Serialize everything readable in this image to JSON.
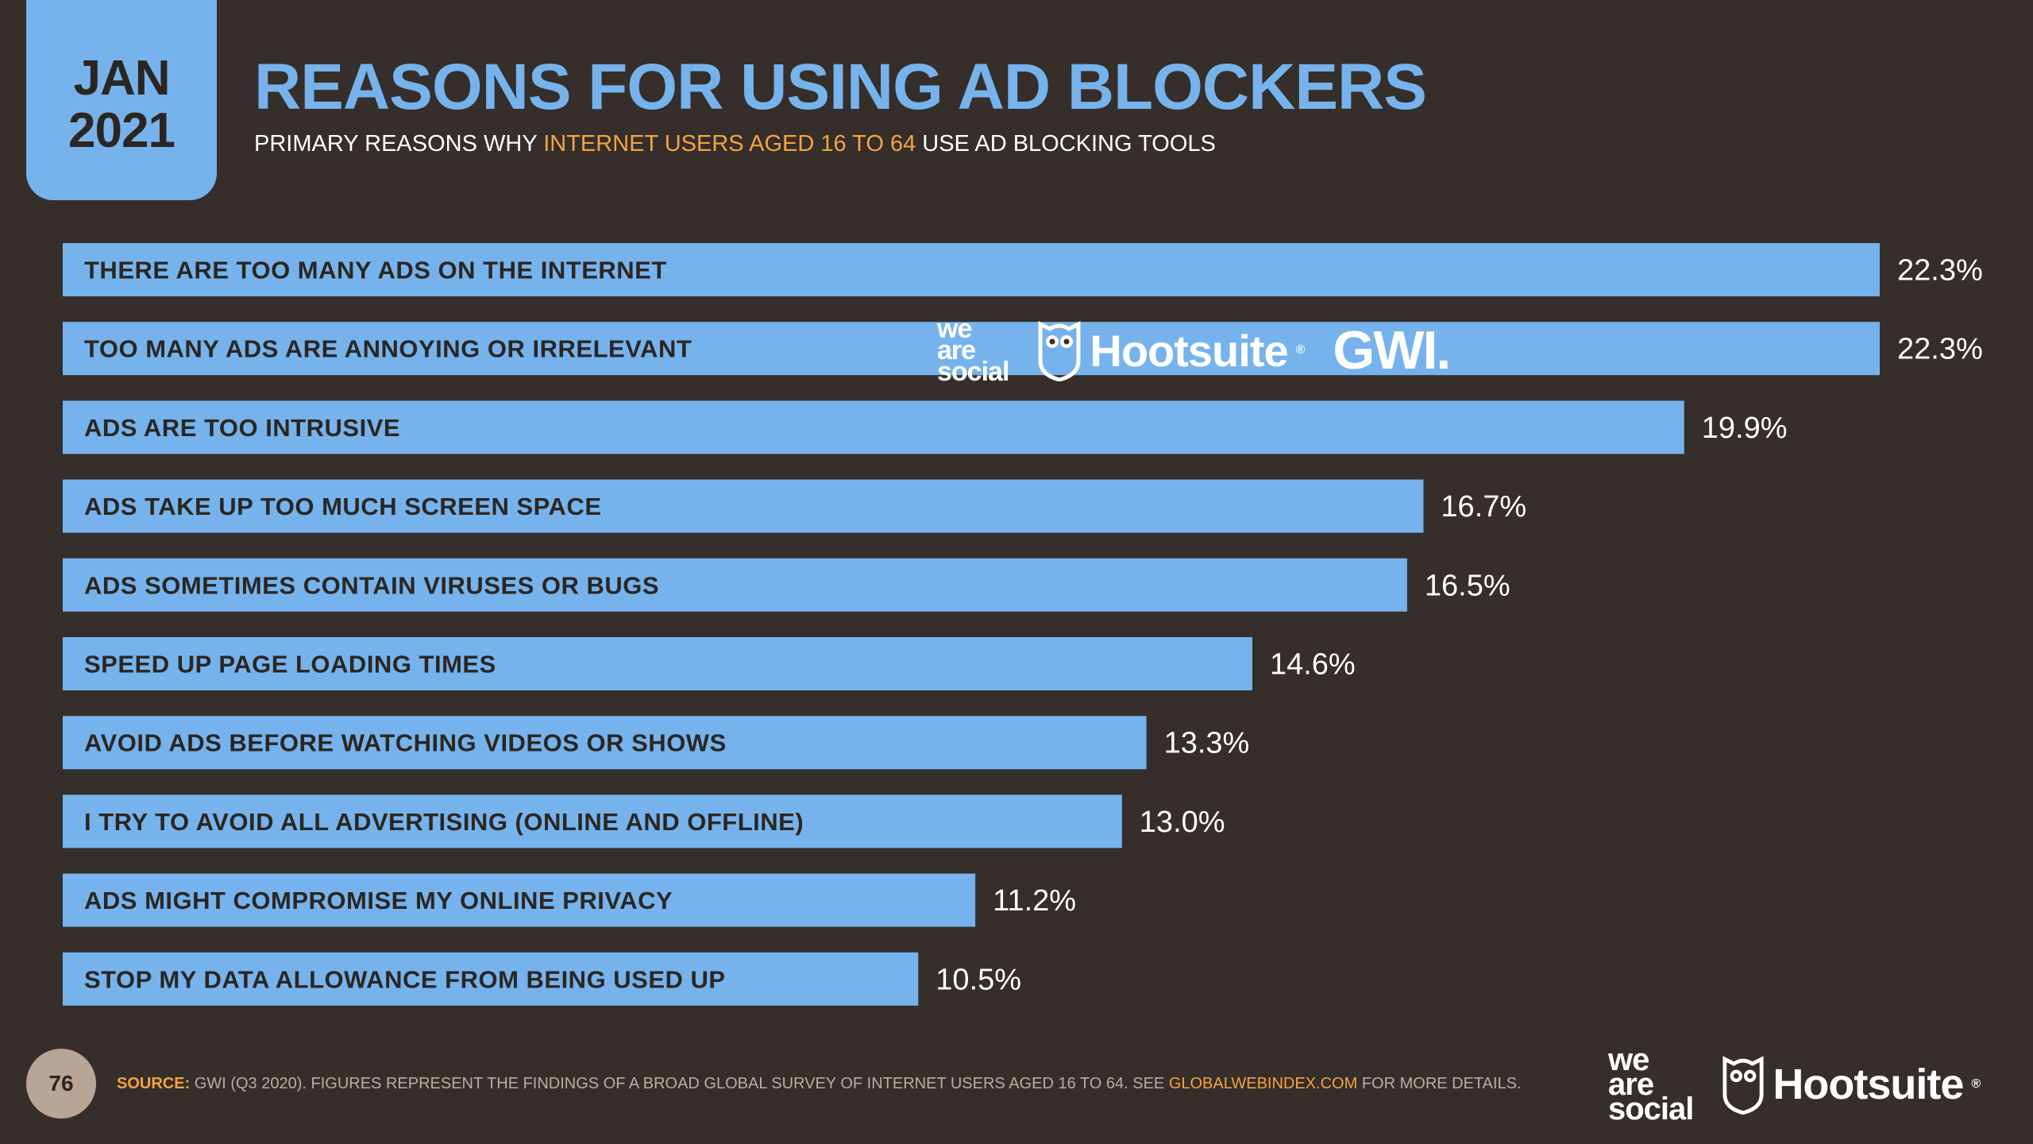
{
  "header": {
    "date_month": "JAN",
    "date_year": "2021",
    "title": "REASONS FOR USING AD BLOCKERS",
    "subtitle_pre": "PRIMARY REASONS WHY ",
    "subtitle_highlight": "INTERNET USERS AGED 16 TO 64",
    "subtitle_post": " USE AD BLOCKING TOOLS"
  },
  "overlay_logos": {
    "we": "we",
    "are": "are",
    "social": "social",
    "hootsuite": "Hootsuite",
    "gwi": "GWI."
  },
  "footer": {
    "page_number": "76",
    "source_label": "SOURCE:",
    "source_text": " GWI (Q3 2020). FIGURES REPRESENT THE FINDINGS OF A BROAD GLOBAL SURVEY OF INTERNET USERS AGED 16 TO 64. SEE ",
    "source_link": "GLOBALWEBINDEX.COM",
    "source_tail": " FOR MORE DETAILS.",
    "we": "we",
    "are": "are",
    "social": "social",
    "hootsuite": "Hootsuite"
  },
  "colors": {
    "background": "#352e2a",
    "bar": "#76b3ec",
    "accent": "#f4a340",
    "text": "#ffffff"
  },
  "chart_data": {
    "type": "bar",
    "orientation": "horizontal",
    "categories": [
      "THERE ARE TOO MANY ADS ON THE INTERNET",
      "TOO MANY ADS ARE ANNOYING OR IRRELEVANT",
      "ADS ARE TOO INTRUSIVE",
      "ADS TAKE UP TOO MUCH SCREEN SPACE",
      "ADS SOMETIMES CONTAIN VIRUSES OR BUGS",
      "SPEED UP PAGE LOADING TIMES",
      "AVOID ADS BEFORE WATCHING VIDEOS OR SHOWS",
      "I TRY TO AVOID ALL ADVERTISING (ONLINE AND OFFLINE)",
      "ADS MIGHT COMPROMISE MY ONLINE PRIVACY",
      "STOP MY DATA ALLOWANCE FROM BEING USED UP"
    ],
    "values": [
      22.3,
      22.3,
      19.9,
      16.7,
      16.5,
      14.6,
      13.3,
      13.0,
      11.2,
      10.5
    ],
    "data_labels": [
      "22.3%",
      "22.3%",
      "19.9%",
      "16.7%",
      "16.5%",
      "14.6%",
      "13.3%",
      "13.0%",
      "11.2%",
      "10.5%"
    ],
    "xlim": [
      0,
      22.3
    ],
    "grid": false,
    "legend": "none"
  }
}
